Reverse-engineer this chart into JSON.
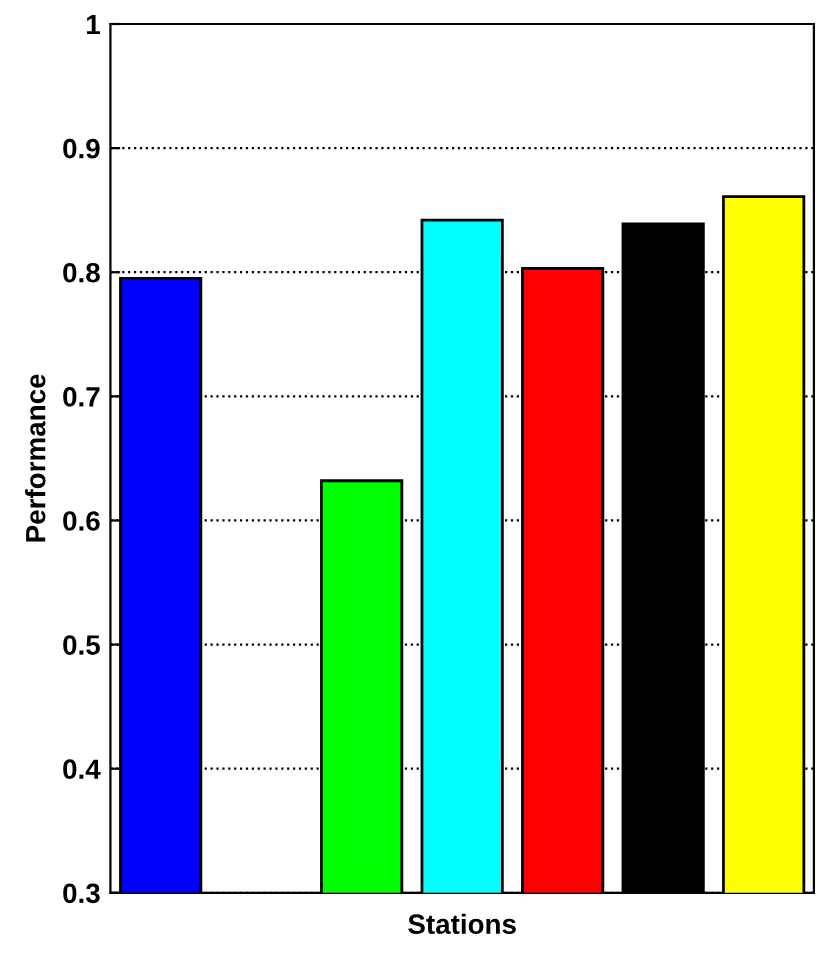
{
  "chart_data": {
    "type": "bar",
    "xlabel": "Stations",
    "ylabel": "Performance",
    "categories": [
      null,
      null,
      null,
      null,
      null,
      null,
      null
    ],
    "values": [
      0.795,
      null,
      0.632,
      0.842,
      0.803,
      0.839,
      0.861
    ],
    "colors": [
      "#0000ff",
      "#ffffff",
      "#00ff00",
      "#00ffff",
      "#ff0000",
      "#000000",
      "#ffff00"
    ],
    "ylim": [
      0.3,
      1
    ],
    "yticks": [
      0.3,
      0.4,
      0.5,
      0.6,
      0.7,
      0.8,
      0.9,
      1
    ],
    "grid": "y"
  }
}
